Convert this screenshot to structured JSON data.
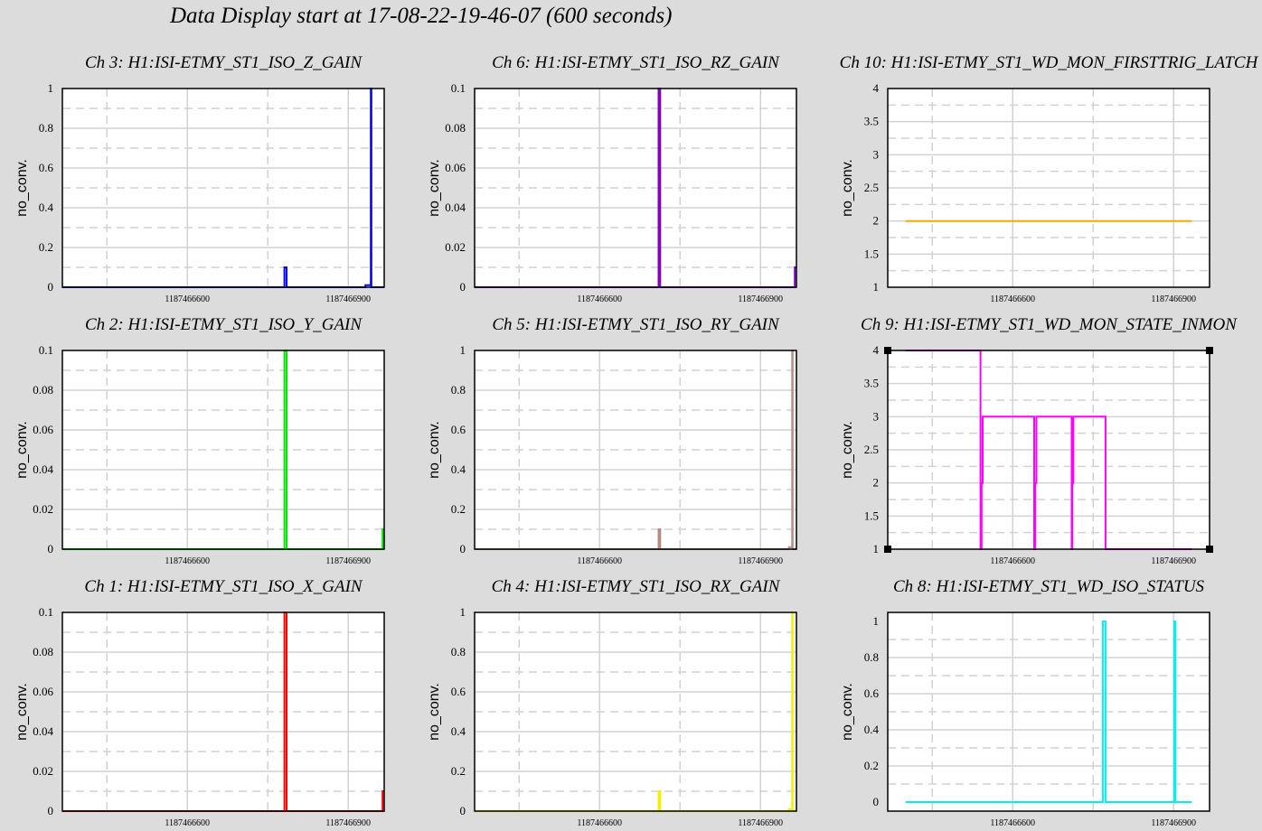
{
  "page": {
    "title": "Data Display start at 17-08-22-19-46-07 (600 seconds)"
  },
  "colors": {
    "background": "#dcdcdc",
    "plot_bg": "#ffffff",
    "grid": "#d2d2d2",
    "frame": "#000000"
  },
  "chart_data": [
    {
      "id": "ch3",
      "title": "Ch 3: H1:ISI-ETMY_ST1_ISO_Z_GAIN",
      "type": "line",
      "color": "#0000ff",
      "ylabel": "no_conv.",
      "xlim": [
        1187466367,
        1187466967
      ],
      "ylim": [
        0,
        1
      ],
      "yticks": [
        "0",
        "0.2",
        "0.4",
        "0.6",
        "0.8",
        "1"
      ],
      "xticks": [
        "1187466600",
        "1187466900"
      ],
      "series": [
        {
          "x": [
            1187466367,
            1187466781,
            1187466781,
            1187466785,
            1187466785,
            1187466932,
            1187466932,
            1187466942,
            1187466942,
            1187466943,
            1187466943,
            1187466967
          ],
          "y": [
            0,
            0,
            0.1,
            0.1,
            0,
            0,
            0.01,
            0.01,
            1,
            1,
            0,
            0
          ]
        }
      ]
    },
    {
      "id": "ch6",
      "title": "Ch 6: H1:ISI-ETMY_ST1_ISO_RZ_GAIN",
      "type": "line",
      "color": "#8000c8",
      "ylabel": "no_conv.",
      "xlim": [
        1187466367,
        1187466967
      ],
      "ylim": [
        0,
        0.1
      ],
      "yticks": [
        "0",
        "0.02",
        "0.04",
        "0.06",
        "0.08",
        "0.1"
      ],
      "xticks": [
        "1187466600",
        "1187466900"
      ],
      "series": [
        {
          "x": [
            1187466367,
            1187466710,
            1187466710,
            1187466713,
            1187466713,
            1187466964,
            1187466964,
            1187466967
          ],
          "y": [
            0,
            0,
            0.1,
            0.1,
            0,
            0,
            0.01,
            0.01
          ]
        }
      ]
    },
    {
      "id": "ch10",
      "title": "Ch 10: H1:ISI-ETMY_ST1_WD_MON_FIRSTTRIG_LATCH",
      "type": "line",
      "color": "#ffa500",
      "ylabel": "no_conv.",
      "xlim": [
        1187466367,
        1187466967
      ],
      "ylim": [
        1,
        4
      ],
      "yticks": [
        "1",
        "1.5",
        "2",
        "2.5",
        "3",
        "3.5",
        "4"
      ],
      "xticks": [
        "1187466600",
        "1187466900"
      ],
      "series": [
        {
          "x": [
            1187466400,
            1187466934
          ],
          "y": [
            2,
            2
          ]
        }
      ]
    },
    {
      "id": "ch2",
      "title": "Ch 2: H1:ISI-ETMY_ST1_ISO_Y_GAIN",
      "type": "line",
      "color": "#00e600",
      "ylabel": "no_conv.",
      "xlim": [
        1187466367,
        1187466967
      ],
      "ylim": [
        0,
        0.1
      ],
      "yticks": [
        "0",
        "0.02",
        "0.04",
        "0.06",
        "0.08",
        "0.1"
      ],
      "xticks": [
        "1187466600",
        "1187466900"
      ],
      "series": [
        {
          "x": [
            1187466367,
            1187466781,
            1187466781,
            1187466785,
            1187466785,
            1187466964,
            1187466964,
            1187466967
          ],
          "y": [
            0,
            0,
            0.1,
            0.1,
            0,
            0,
            0.01,
            0.01
          ]
        }
      ]
    },
    {
      "id": "ch5",
      "title": "Ch 5: H1:ISI-ETMY_ST1_ISO_RY_GAIN",
      "type": "line",
      "color": "#b48c82",
      "ylabel": "no_conv.",
      "xlim": [
        1187466367,
        1187466967
      ],
      "ylim": [
        0,
        1
      ],
      "yticks": [
        "0",
        "0.2",
        "0.4",
        "0.6",
        "0.8",
        "1"
      ],
      "xticks": [
        "1187466600",
        "1187466900"
      ],
      "series": [
        {
          "x": [
            1187466367,
            1187466710,
            1187466710,
            1187466713,
            1187466713,
            1187466953,
            1187466953,
            1187466959,
            1187466959,
            1187466960,
            1187466960,
            1187466967
          ],
          "y": [
            0,
            0,
            0.1,
            0.1,
            0,
            0,
            0.01,
            0.01,
            1,
            1,
            0,
            0
          ]
        }
      ]
    },
    {
      "id": "ch9",
      "title": "Ch 9: H1:ISI-ETMY_ST1_WD_MON_STATE_INMON",
      "type": "line",
      "color": "#ff00ff",
      "ylabel": "no_conv.",
      "xlim": [
        1187466367,
        1187466967
      ],
      "ylim": [
        1,
        4
      ],
      "yticks": [
        "1",
        "1.5",
        "2",
        "2.5",
        "3",
        "3.5",
        "4"
      ],
      "xticks": [
        "1187466600",
        "1187466900"
      ],
      "series": [
        {
          "x": [
            1187466400,
            1187466540,
            1187466540,
            1187466542,
            1187466542,
            1187466544,
            1187466544,
            1187466640,
            1187466640,
            1187466642,
            1187466642,
            1187466644,
            1187466644,
            1187466710,
            1187466710,
            1187466711,
            1187466711,
            1187466713,
            1187466713,
            1187466773,
            1187466773,
            1187466934
          ],
          "y": [
            4,
            4,
            1,
            1,
            2,
            2,
            3,
            3,
            1,
            1,
            2,
            2,
            3,
            3,
            1,
            1,
            2,
            2,
            3,
            3,
            1,
            1
          ]
        }
      ]
    },
    {
      "id": "ch1",
      "title": "Ch 1: H1:ISI-ETMY_ST1_ISO_X_GAIN",
      "type": "line",
      "color": "#ff0000",
      "ylabel": "no_conv.",
      "xlim": [
        1187466367,
        1187466967
      ],
      "ylim": [
        0,
        0.1
      ],
      "yticks": [
        "0",
        "0.02",
        "0.04",
        "0.06",
        "0.08",
        "0.1"
      ],
      "xticks": [
        "1187466600",
        "1187466900"
      ],
      "series": [
        {
          "x": [
            1187466367,
            1187466781,
            1187466781,
            1187466785,
            1187466785,
            1187466964,
            1187466964,
            1187466967
          ],
          "y": [
            0,
            0,
            0.1,
            0.1,
            0,
            0,
            0.01,
            0.01
          ]
        }
      ]
    },
    {
      "id": "ch4",
      "title": "Ch 4: H1:ISI-ETMY_ST1_ISO_RX_GAIN",
      "type": "line",
      "color": "#f0f000",
      "ylabel": "no_conv.",
      "xlim": [
        1187466367,
        1187466967
      ],
      "ylim": [
        0,
        1
      ],
      "yticks": [
        "0",
        "0.2",
        "0.4",
        "0.6",
        "0.8",
        "1"
      ],
      "xticks": [
        "1187466600",
        "1187466900"
      ],
      "series": [
        {
          "x": [
            1187466367,
            1187466710,
            1187466710,
            1187466713,
            1187466713,
            1187466953,
            1187466953,
            1187466959,
            1187466959,
            1187466960,
            1187466960,
            1187466967
          ],
          "y": [
            0,
            0,
            0.1,
            0.1,
            0,
            0,
            0.01,
            0.01,
            1,
            1,
            0,
            0
          ]
        }
      ]
    },
    {
      "id": "ch8",
      "title": "Ch 8: H1:ISI-ETMY_ST1_WD_ISO_STATUS",
      "type": "line",
      "color": "#00f0f0",
      "ylabel": "no_conv.",
      "xlim": [
        1187466367,
        1187466967
      ],
      "ylim": [
        -0.05,
        1.05
      ],
      "yticks": [
        "0",
        "0.2",
        "0.4",
        "0.6",
        "0.8",
        "1"
      ],
      "xticks": [
        "1187466600",
        "1187466900"
      ],
      "series": [
        {
          "x": [
            1187466400,
            1187466768,
            1187466768,
            1187466771,
            1187466771,
            1187466773,
            1187466773,
            1187466901,
            1187466901,
            1187466903,
            1187466903,
            1187466934
          ],
          "y": [
            0,
            0,
            1,
            1,
            1,
            1,
            0,
            0,
            1,
            1,
            0,
            0
          ]
        }
      ]
    }
  ]
}
